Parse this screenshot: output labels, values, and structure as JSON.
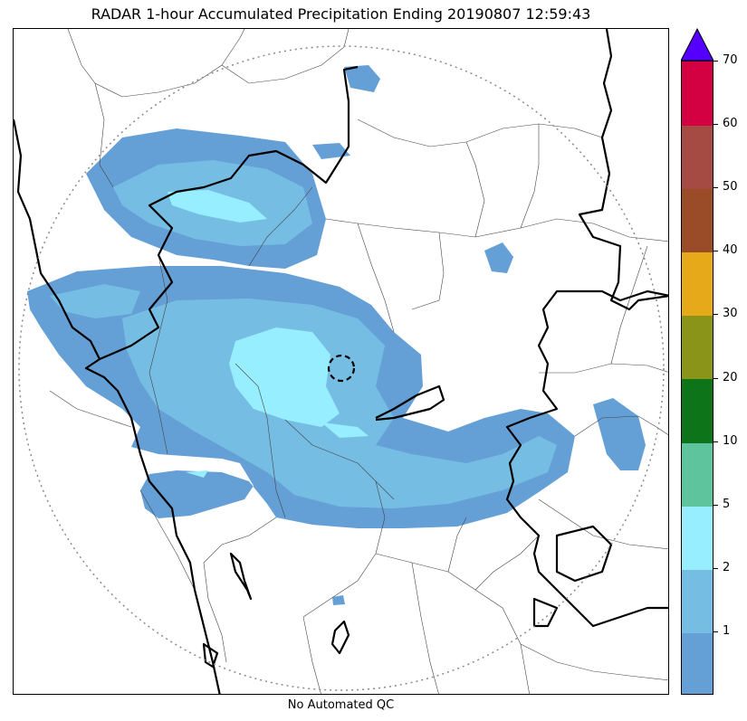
{
  "title": "RADAR 1-hour Accumulated Precipitation Ending 20190807 12:59:43",
  "footer_note": "No Automated QC",
  "colorbar": {
    "extend_max_color": "#5500ff",
    "levels": [
      {
        "label": "",
        "color": "#64a0d6"
      },
      {
        "label": "1",
        "color": "#76bde4"
      },
      {
        "label": "2",
        "color": "#96eefe"
      },
      {
        "label": "5",
        "color": "#5dc49d"
      },
      {
        "label": "10",
        "color": "#0d741a"
      },
      {
        "label": "20",
        "color": "#8a9418"
      },
      {
        "label": "30",
        "color": "#e6a91a"
      },
      {
        "label": "40",
        "color": "#9a4c28"
      },
      {
        "label": "50",
        "color": "#a64b44"
      },
      {
        "label": "60",
        "color": "#d30042"
      },
      {
        "label": "70",
        "color": ""
      }
    ]
  },
  "map_colors": {
    "precip_light": "#64a0d6",
    "precip_mid": "#76bde4",
    "precip_heavy": "#96eefe",
    "range_ring": "#8a8a8a",
    "border": "#000000"
  }
}
